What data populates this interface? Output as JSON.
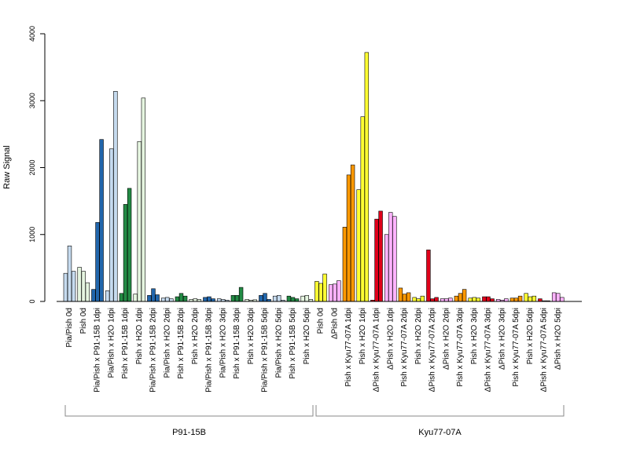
{
  "chart_data": {
    "type": "bar",
    "title": "",
    "xlabel": "",
    "ylabel": "Raw Signal",
    "ylim": [
      0,
      4000
    ],
    "yticks": [
      0,
      1000,
      2000,
      3000,
      4000
    ],
    "grid": false,
    "legend": "none",
    "categories": [
      "Pia/Pish 0d",
      "Pish 0d",
      "Pia/Pish x P91-15B 1dpi",
      "Pia/Pish x H2O 1dpi",
      "Pish x P91-15B 1dpi",
      "Pish x H2O 1dpi",
      "Pia/Pish x P91-15B 2dpi",
      "Pia/Pish x H2O 2dpi",
      "Pish x P91-15B 2dpi",
      "Pish x H2O 2dpi",
      "Pia/Pish x P91-15B 3dpi",
      "Pia/Pish x H2O 3dpi",
      "Pish x P91-15B 3dpi",
      "Pish x H2O 3dpi",
      "Pia/Pish x P91-15B 5dpi",
      "Pia/Pish x H2O 5dpi",
      "Pish x P91-15B 5dpi",
      "Pish x H2O 5dpi",
      "Pish 0d",
      "ΔPish 0d",
      "Pish x Kyu77-07A 1dpi",
      "Pish x H2O 1dpi",
      "ΔPish x Kyu77-07A 1dpi",
      "ΔPish x H2O 1dpi",
      "Pish x Kyu77-07A 2dpi",
      "Pish x H2O 2dpi",
      "ΔPish x Kyu77-07A 2dpi",
      "ΔPish x H2O 2dpi",
      "Pish x Kyu77-07A 3dpi",
      "Pish x H2O 3dpi",
      "ΔPish x Kyu77-07A 3dpi",
      "ΔPish x H2O 3dpi",
      "Pish x Kyu77-07A 5dpi",
      "Pish x H2O 5dpi",
      "ΔPish x Kyu77-07A 5dpi",
      "ΔPish x H2O 5dpi"
    ],
    "bar_groups": [
      {
        "color": "#c6dbef",
        "values": [
          420,
          830,
          450
        ]
      },
      {
        "color": "#e5f5e0",
        "values": [
          510,
          450,
          280
        ]
      },
      {
        "color": "#2166ac",
        "values": [
          180,
          1180,
          2420
        ]
      },
      {
        "color": "#c6dbef",
        "values": [
          160,
          2280,
          3140
        ]
      },
      {
        "color": "#238b45",
        "values": [
          120,
          1450,
          1690
        ]
      },
      {
        "color": "#e5f5e0",
        "values": [
          110,
          2390,
          3040
        ]
      },
      {
        "color": "#2166ac",
        "values": [
          90,
          190,
          100
        ]
      },
      {
        "color": "#c6dbef",
        "values": [
          50,
          60,
          40
        ]
      },
      {
        "color": "#238b45",
        "values": [
          70,
          120,
          80
        ]
      },
      {
        "color": "#e5f5e0",
        "values": [
          30,
          40,
          30
        ]
      },
      {
        "color": "#2166ac",
        "values": [
          60,
          70,
          40
        ]
      },
      {
        "color": "#c6dbef",
        "values": [
          40,
          30,
          20
        ]
      },
      {
        "color": "#238b45",
        "values": [
          90,
          90,
          210
        ]
      },
      {
        "color": "#e5f5e0",
        "values": [
          30,
          20,
          25
        ]
      },
      {
        "color": "#2166ac",
        "values": [
          90,
          120,
          30
        ]
      },
      {
        "color": "#c6dbef",
        "values": [
          80,
          90,
          20
        ]
      },
      {
        "color": "#238b45",
        "values": [
          80,
          60,
          40
        ]
      },
      {
        "color": "#e5f5e0",
        "values": [
          80,
          90,
          30
        ]
      },
      {
        "color": "#ffff33",
        "values": [
          300,
          270,
          410
        ]
      },
      {
        "color": "#ffb3ff",
        "values": [
          250,
          260,
          310
        ]
      },
      {
        "color": "#ff9900",
        "values": [
          1110,
          1890,
          2040
        ]
      },
      {
        "color": "#ffff33",
        "values": [
          1670,
          2760,
          3720
        ]
      },
      {
        "color": "#e0001a",
        "values": [
          20,
          1230,
          1350
        ]
      },
      {
        "color": "#ffb3ff",
        "values": [
          1000,
          1330,
          1270
        ]
      },
      {
        "color": "#ff9900",
        "values": [
          200,
          110,
          130
        ]
      },
      {
        "color": "#ffff33",
        "values": [
          60,
          40,
          80
        ]
      },
      {
        "color": "#e0001a",
        "values": [
          770,
          40,
          60
        ]
      },
      {
        "color": "#ffb3ff",
        "values": [
          40,
          40,
          50
        ]
      },
      {
        "color": "#ff9900",
        "values": [
          80,
          120,
          180
        ]
      },
      {
        "color": "#ffff33",
        "values": [
          50,
          60,
          50
        ]
      },
      {
        "color": "#e0001a",
        "values": [
          70,
          70,
          40
        ]
      },
      {
        "color": "#ffb3ff",
        "values": [
          30,
          20,
          40
        ]
      },
      {
        "color": "#ff9900",
        "values": [
          50,
          50,
          80
        ]
      },
      {
        "color": "#ffff33",
        "values": [
          120,
          70,
          80
        ]
      },
      {
        "color": "#e0001a",
        "values": [
          40,
          10,
          10
        ]
      },
      {
        "color": "#ffb3ff",
        "values": [
          130,
          120,
          60
        ]
      }
    ],
    "sections": [
      {
        "label": "P91-15B",
        "from": 0,
        "to": 17
      },
      {
        "label": "Kyu77-07A",
        "from": 18,
        "to": 35
      }
    ]
  }
}
